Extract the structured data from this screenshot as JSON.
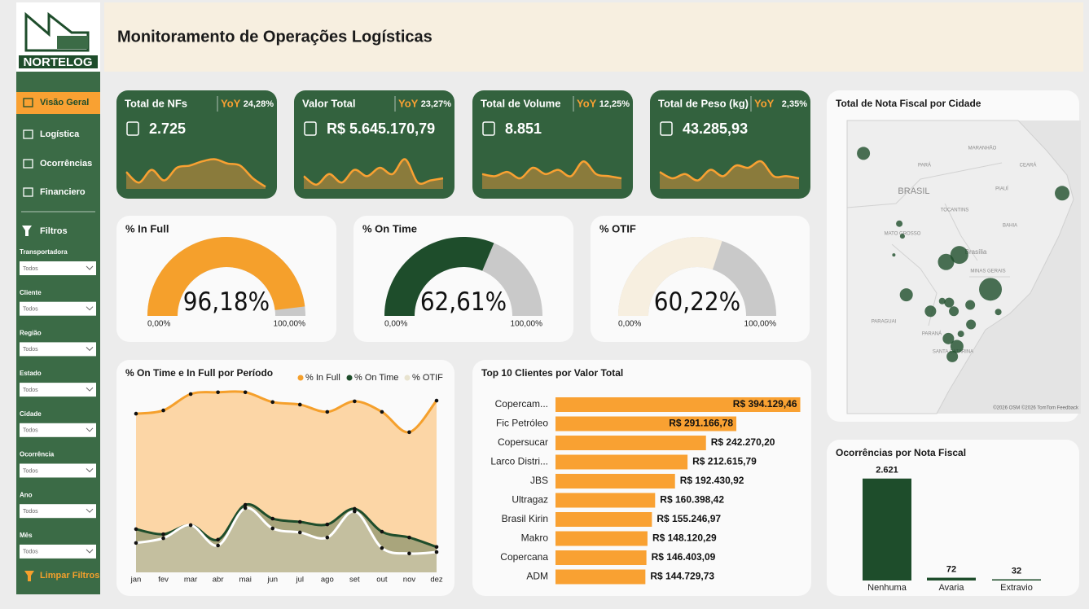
{
  "header": {
    "logo": "NORTELOG",
    "title": "Monitoramento de Operações Logísticas"
  },
  "sidebar": {
    "nav": [
      "Visão Geral",
      "Logística",
      "Ocorrências",
      "Financiero"
    ],
    "filters_title": "Filtros",
    "filters": [
      {
        "label": "Transportadora",
        "value": "Todos"
      },
      {
        "label": "Cliente",
        "value": "Todos"
      },
      {
        "label": "Região",
        "value": "Todos"
      },
      {
        "label": "Estado",
        "value": "Todos"
      },
      {
        "label": "Cidade",
        "value": "Todos"
      },
      {
        "label": "Ocorrência",
        "value": "Todos"
      },
      {
        "label": "Ano",
        "value": "Todos"
      },
      {
        "label": "Mês",
        "value": "Todos"
      }
    ],
    "clear": "Limpar Filtros"
  },
  "kpis": [
    {
      "title": "Total de NFs",
      "yoy_label": "YoY",
      "yoy": "24,28%",
      "value": "2.725",
      "spark": [
        40,
        15,
        45,
        20,
        50,
        55,
        65,
        70,
        60,
        55,
        25,
        5
      ],
      "spark_ylim": [
        0,
        100
      ]
    },
    {
      "title": "Valor Total",
      "yoy_label": "YoY",
      "yoy": "23,27%",
      "value": "R$ 5.645.170,79",
      "spark": [
        30,
        10,
        35,
        15,
        45,
        30,
        50,
        35,
        70,
        15,
        20,
        25
      ],
      "spark_ylim": [
        0,
        100
      ]
    },
    {
      "title": "Total de Volume",
      "yoy_label": "YoY",
      "yoy": "12,25%",
      "value": "8.851",
      "spark": [
        35,
        30,
        40,
        25,
        50,
        35,
        45,
        30,
        65,
        35,
        30,
        25
      ],
      "spark_ylim": [
        0,
        100
      ]
    },
    {
      "title": "Total de Peso (kg)",
      "yoy_label": "YoY",
      "yoy": "2,35%",
      "value": "43.285,93",
      "spark": [
        40,
        25,
        35,
        20,
        45,
        30,
        55,
        50,
        65,
        30,
        30,
        25
      ],
      "spark_ylim": [
        0,
        100
      ]
    }
  ],
  "chart_data": [
    {
      "type": "gauge",
      "title": "% In Full",
      "value": 96.18,
      "value_label": "96,18%",
      "color": "#f5a02c",
      "track_color": "#c9c9c9",
      "ticks": [
        {
          "value": 0,
          "label": "0,00%"
        },
        {
          "value": 100,
          "label": "100,00%"
        }
      ]
    },
    {
      "type": "gauge",
      "title": "% On Time",
      "value": 62.61,
      "value_label": "62,61%",
      "color": "#1e4d2b",
      "track_color": "#c9c9c9",
      "ticks": [
        {
          "value": 0,
          "label": "0,00%"
        },
        {
          "value": 100,
          "label": "100,00%"
        }
      ]
    },
    {
      "type": "gauge",
      "title": "% OTIF",
      "value": 60.22,
      "value_label": "60,22%",
      "color": "#f7efe0",
      "track_color": "#c9c9c9",
      "ticks": [
        {
          "value": 0,
          "label": "0,00%"
        },
        {
          "value": 100,
          "label": "100,00%"
        }
      ]
    },
    {
      "type": "line",
      "title": "% On Time e In Full por Período",
      "categories": [
        "jan",
        "fev",
        "mar",
        "abr",
        "mai",
        "jun",
        "jul",
        "ago",
        "set",
        "out",
        "nov",
        "dez"
      ],
      "ylim": [
        50,
        100
      ],
      "series": [
        {
          "name": "% In Full",
          "color": "#f5a02c",
          "area_color": "#fcd6a6",
          "values": [
            93.7,
            94.6,
            99.1,
            99.6,
            99.6,
            96.9,
            96.2,
            94.2,
            97.1,
            94.2,
            88.6,
            97.3
          ]
        },
        {
          "name": "% On Time",
          "color": "#1e4d2b",
          "area_color": "#a9a57c",
          "values": [
            61.9,
            60.5,
            63.0,
            59.0,
            68.6,
            64.8,
            63.9,
            63.2,
            67.5,
            61.2,
            59.6,
            57.0
          ]
        },
        {
          "name": "% OTIF",
          "color": "#ffffff",
          "area_color": "#c4bf9f",
          "values": [
            58.1,
            59.4,
            63.0,
            57.4,
            67.7,
            62.1,
            61.0,
            59.6,
            66.8,
            56.7,
            55.2,
            55.6
          ]
        }
      ]
    },
    {
      "type": "hbar",
      "title": "Top 10 Clientes por Valor Total",
      "color": "#f9a132",
      "categories": [
        "Copercam...",
        "Fic Petróleo",
        "Copersucar",
        "Larco Distri...",
        "JBS",
        "Ultragaz",
        "Brasil Kirin",
        "Makro",
        "Copercana",
        "ADM"
      ],
      "values": [
        394129.46,
        291166.78,
        242270.2,
        212615.79,
        192430.92,
        160398.42,
        155246.97,
        148120.29,
        146403.09,
        144729.73
      ],
      "value_labels": [
        "R$ 394.129,46",
        "R$ 291.166,78",
        "R$ 242.270,20",
        "R$ 212.615,79",
        "R$ 192.430,92",
        "R$ 160.398,42",
        "R$ 155.246,97",
        "R$ 148.120,29",
        "R$ 146.403,09",
        "R$ 144.729,73"
      ],
      "xlim": [
        0,
        400000
      ]
    },
    {
      "type": "map",
      "title": "Total de Nota Fiscal por Cidade",
      "color": "#1e4d2b",
      "lonlim": [
        -63,
        -33
      ],
      "latlim": [
        -35.5,
        2
      ],
      "labels": [
        "BRASIL",
        "PARÁ",
        "MARANHÃO",
        "CEARÁ",
        "PIAUÍ",
        "TOCANTINS",
        "BAHIA",
        "MATO GROSSO",
        "MINAS GERAIS",
        "Brasília",
        "PARAGUAI",
        "PARANÁ",
        "SANTA CATARINA"
      ],
      "attribution": "©2026 OSM ©2026 TomTom Feedback",
      "points": {
        "lon": [
          -60.9,
          -35.4,
          -56.3,
          -55.9,
          -57.0,
          -50.3,
          -48.6,
          -44.6,
          -55.4,
          -52.3,
          -49.9,
          -49.3,
          -47.2,
          -50.8,
          -43.6,
          -50.0,
          -47.1,
          -48.9,
          -49.5,
          -48.4
        ],
        "lat": [
          -2.2,
          -7.3,
          -11.2,
          -12.8,
          -15.2,
          -16.1,
          -15.2,
          -19.6,
          -20.3,
          -22.4,
          -21.3,
          -22.4,
          -21.6,
          -21.1,
          -22.5,
          -25.9,
          -24.1,
          -26.9,
          -28.2,
          -25.3
        ],
        "values": [
          160,
          203,
          40,
          23,
          10,
          250,
          303,
          490,
          160,
          123,
          90,
          90,
          90,
          40,
          40,
          123,
          90,
          160,
          123,
          40
        ]
      }
    },
    {
      "type": "bar",
      "title": "Ocorrências por Nota Fiscal",
      "color": "#1e4d2b",
      "categories": [
        "Nenhuma",
        "Avaria",
        "Extravio"
      ],
      "values": [
        2621,
        72,
        32
      ],
      "value_labels": [
        "2.621",
        "72",
        "32"
      ],
      "ylim": [
        0,
        2700
      ]
    }
  ]
}
